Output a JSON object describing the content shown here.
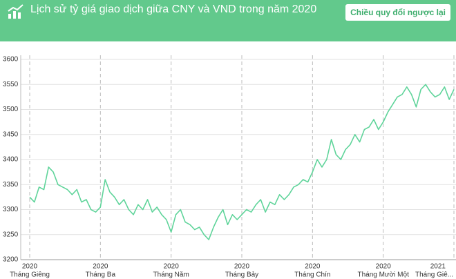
{
  "header": {
    "title": "Lịch sử tỷ giá giao dịch giữa CNY và VND trong năm 2020",
    "button": "Chiều quy đổi ngược lại"
  },
  "chart_data": {
    "type": "line",
    "color": "#5fd49a",
    "grid": true,
    "ylim": [
      3200,
      3600
    ],
    "yticks": [
      3200,
      3250,
      3300,
      3350,
      3400,
      3450,
      3500,
      3550,
      3600
    ],
    "categories": [
      {
        "year": "2020",
        "month": "Tháng Giêng"
      },
      null,
      null,
      null,
      null,
      null,
      null,
      null,
      null,
      null,
      null,
      null,
      null,
      null,
      null,
      {
        "year": "2020",
        "month": "Tháng Ba"
      },
      null,
      null,
      null,
      null,
      null,
      null,
      null,
      null,
      null,
      null,
      null,
      null,
      null,
      null,
      {
        "year": "2020",
        "month": "Tháng Năm"
      },
      null,
      null,
      null,
      null,
      null,
      null,
      null,
      null,
      null,
      null,
      null,
      null,
      null,
      null,
      {
        "year": "2020",
        "month": "Tháng Bảy"
      },
      null,
      null,
      null,
      null,
      null,
      null,
      null,
      null,
      null,
      null,
      null,
      null,
      null,
      null,
      {
        "year": "2020",
        "month": "Tháng Chín"
      },
      null,
      null,
      null,
      null,
      null,
      null,
      null,
      null,
      null,
      null,
      null,
      null,
      null,
      null,
      {
        "year": "2020",
        "month": "Tháng Mười Một"
      },
      null,
      null,
      null,
      null,
      null,
      null,
      null,
      null,
      null,
      null,
      null,
      null,
      null,
      null,
      {
        "year": "2021",
        "month": "Tháng Giê..."
      }
    ],
    "values": [
      3325,
      3315,
      3345,
      3340,
      3385,
      3375,
      3350,
      3345,
      3340,
      3330,
      3340,
      3315,
      3320,
      3300,
      3295,
      3305,
      3360,
      3335,
      3325,
      3310,
      3320,
      3300,
      3290,
      3310,
      3300,
      3320,
      3295,
      3305,
      3290,
      3280,
      3255,
      3290,
      3300,
      3275,
      3270,
      3260,
      3265,
      3250,
      3240,
      3265,
      3285,
      3300,
      3270,
      3290,
      3280,
      3290,
      3300,
      3295,
      3310,
      3320,
      3295,
      3315,
      3310,
      3330,
      3320,
      3330,
      3345,
      3350,
      3360,
      3355,
      3375,
      3400,
      3385,
      3400,
      3440,
      3410,
      3400,
      3420,
      3430,
      3450,
      3435,
      3460,
      3465,
      3480,
      3460,
      3475,
      3495,
      3510,
      3525,
      3530,
      3545,
      3530,
      3505,
      3540,
      3550,
      3535,
      3525,
      3530,
      3545,
      3520,
      3540
    ]
  }
}
